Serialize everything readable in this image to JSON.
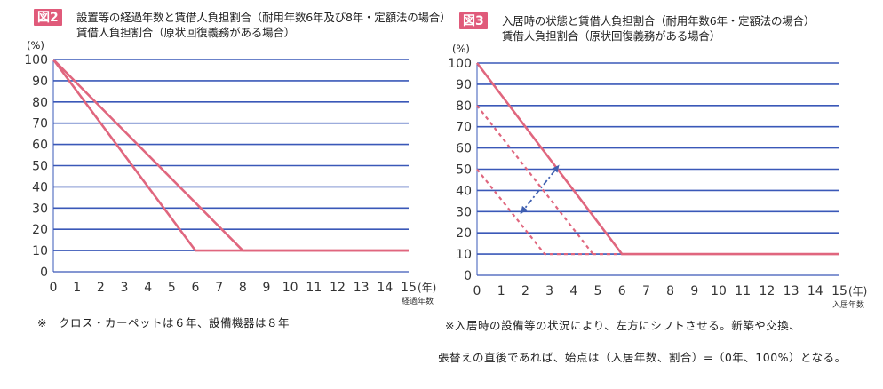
{
  "colors": {
    "grid": "#3a58b8",
    "line": "#e0667e",
    "arrow": "#3f5fb0",
    "badge": "#e05a7a"
  },
  "figure2": {
    "badge": "図2",
    "title_line1": "設置等の経過年数と賃借人負担割合（耐用年数6年及び8年・定額法の場合）",
    "title_line2": "賃借人負担割合（原状回復義務がある場合）",
    "ylabel": "(%)",
    "xlabel": "(年)",
    "xlabel_sub": "経過年数",
    "note": "※　クロス・カーペットは６年、設備機器は８年",
    "chart_data": {
      "type": "line",
      "xlim": [
        0,
        15
      ],
      "ylim": [
        0,
        100
      ],
      "x_ticks": [
        0,
        1,
        2,
        3,
        4,
        5,
        6,
        7,
        8,
        9,
        10,
        11,
        12,
        13,
        14,
        15
      ],
      "y_ticks": [
        0,
        10,
        20,
        30,
        40,
        50,
        60,
        70,
        80,
        90,
        100
      ],
      "grid": true,
      "series": [
        {
          "x": [
            0,
            6,
            15
          ],
          "y": [
            100,
            10,
            10
          ],
          "style": "solid"
        },
        {
          "x": [
            0,
            8,
            15
          ],
          "y": [
            100,
            10,
            10
          ],
          "style": "solid"
        }
      ]
    }
  },
  "figure3": {
    "badge": "図3",
    "title_line1": "入居時の状態と賃借人負担割合（耐用年数6年・定額法の場合）",
    "title_line2": "賃借人負担割合（原状回復義務がある場合）",
    "ylabel": "(%)",
    "xlabel": "(年)",
    "xlabel_sub": "入居年数",
    "note_line1": "※入居時の設備等の状況により、左方にシフトさせる。新築や交換、",
    "note_line2": "張替えの直後であれば、始点は（入居年数、割合）=（0年、100%）となる。",
    "chart_data": {
      "type": "line",
      "xlim": [
        0,
        15
      ],
      "ylim": [
        0,
        100
      ],
      "x_ticks": [
        0,
        1,
        2,
        3,
        4,
        5,
        6,
        7,
        8,
        9,
        10,
        11,
        12,
        13,
        14,
        15
      ],
      "y_ticks": [
        0,
        10,
        20,
        30,
        40,
        50,
        60,
        70,
        80,
        90,
        100
      ],
      "grid": true,
      "series": [
        {
          "x": [
            0,
            6,
            15
          ],
          "y": [
            100,
            10,
            10
          ],
          "style": "solid"
        },
        {
          "x": [
            0,
            4.8
          ],
          "y": [
            80,
            10
          ],
          "style": "dashed"
        },
        {
          "x": [
            0,
            2.8,
            6
          ],
          "y": [
            50,
            10,
            10
          ],
          "style": "dashed"
        }
      ],
      "annotations": [
        {
          "type": "double-arrow",
          "from": [
            1.8,
            29
          ],
          "to": [
            3.4,
            52
          ],
          "style": "dash-dot"
        }
      ]
    }
  }
}
